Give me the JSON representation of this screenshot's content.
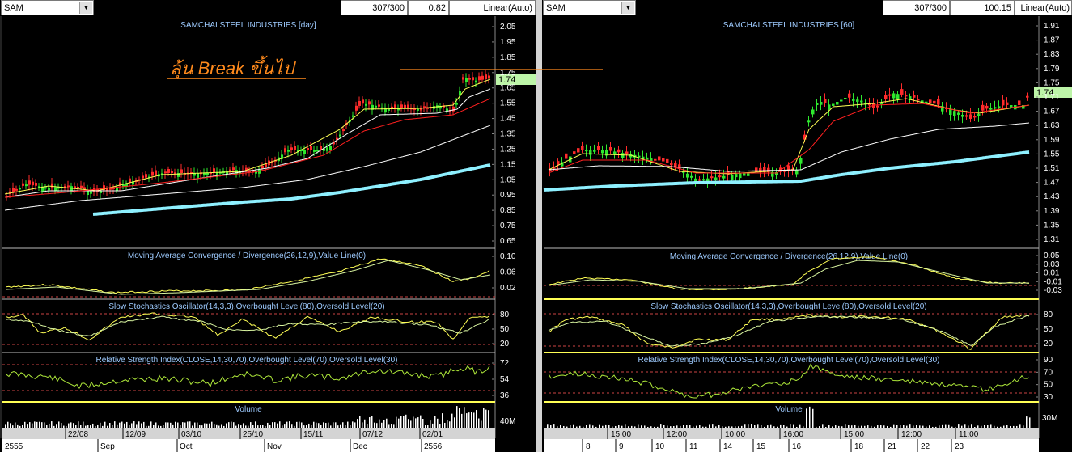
{
  "left": {
    "symbol": "SAM",
    "counter": "307/300",
    "zoom": "0.82",
    "scale_mode": "Linear(Auto)",
    "price_title": "SAMCHAI STEEL INDUSTRIES [day]",
    "annotation": "ลุ้น Break ขึ้นไป",
    "last_price": "1.74",
    "price_ticks": [
      "2.05",
      "1.95",
      "1.85",
      "1.75",
      "1.65",
      "1.55",
      "1.45",
      "1.35",
      "1.25",
      "1.15",
      "1.05",
      "0.95",
      "0.85",
      "0.75",
      "0.65"
    ],
    "macd_title": "Moving Average Convergence / Divergence(26,12,9),Value Line(0)",
    "macd_ticks": [
      "0.10",
      "0.06",
      "0.02"
    ],
    "stoch_title": "Slow Stochastics Oscillator(14,3,3),Overbought Level(80),Oversold Level(20)",
    "stoch_ticks": [
      "80",
      "50",
      "20"
    ],
    "rsi_title": "Relative Strength Index(CLOSE,14,30,70),Overbought Level(70),Oversold Level(30)",
    "rsi_ticks": [
      "72",
      "54",
      "36"
    ],
    "volume_title": "Volume",
    "volume_tick": "40M",
    "x_top": [
      "22/08",
      "12/09",
      "03/10",
      "25/10",
      "15/11",
      "07/12",
      "02/01"
    ],
    "x_bottom": [
      "Sep",
      "Oct",
      "Nov",
      "Dec",
      "2556"
    ],
    "x_corner": "2555"
  },
  "right": {
    "symbol": "SAM",
    "counter": "307/300",
    "zoom": "100.15",
    "scale_mode": "Linear(Auto)",
    "price_title": "SAMCHAI STEEL INDUSTRIES [60]",
    "last_price": "1.74",
    "price_ticks": [
      "1.91",
      "1.87",
      "1.83",
      "1.79",
      "1.75",
      "1.71",
      "1.67",
      "1.63",
      "1.59",
      "1.55",
      "1.51",
      "1.47",
      "1.43",
      "1.39",
      "1.35",
      "1.31"
    ],
    "macd_title": "Moving Average Convergence / Divergence(26,12,9),Value Line(0)",
    "macd_ticks": [
      "0.05",
      "0.03",
      "0.01",
      "-0.01",
      "-0.03"
    ],
    "stoch_title": "Slow Stochastics Oscillator(14,3,3),Overbought Level(80),Oversold Level(20)",
    "stoch_ticks": [
      "80",
      "50",
      "20"
    ],
    "rsi_title": "Relative Strength Index(CLOSE,14,30,70),Overbought Level(70),Oversold Level(30)",
    "rsi_ticks": [
      "90",
      "70",
      "50",
      "30"
    ],
    "volume_title": "Volume",
    "volume_tick": "30M",
    "x_top": [
      "15:00",
      "12:00",
      "10:00",
      "16:00",
      "15:00",
      "12:00",
      "11:00"
    ],
    "x_bottom": [
      "8",
      "9",
      "10",
      "11",
      "14",
      "15",
      "16",
      "18",
      "21",
      "22",
      "23"
    ]
  },
  "chart_data": [
    {
      "type": "candlestick",
      "title": "SAMCHAI STEEL INDUSTRIES [day]",
      "x": [
        "22/08",
        "12/09",
        "03/10",
        "25/10",
        "15/11",
        "07/12",
        "02/01"
      ],
      "ylim": [
        0.65,
        2.05
      ],
      "close_approx": [
        1.0,
        1.0,
        1.0,
        1.06,
        1.15,
        1.55,
        1.74
      ],
      "last_price": 1.74,
      "annotation": "ลุ้น Break ขึ้นไป"
    },
    {
      "type": "candlestick",
      "title": "SAMCHAI STEEL INDUSTRIES [60]",
      "x": [
        "8",
        "9",
        "10",
        "11",
        "14",
        "15",
        "16",
        "18",
        "21",
        "22",
        "23"
      ],
      "ylim": [
        1.31,
        1.91
      ],
      "close_approx": [
        1.5,
        1.54,
        1.53,
        1.49,
        1.5,
        1.5,
        1.72,
        1.74,
        1.72,
        1.67,
        1.74
      ],
      "last_price": 1.74
    }
  ]
}
